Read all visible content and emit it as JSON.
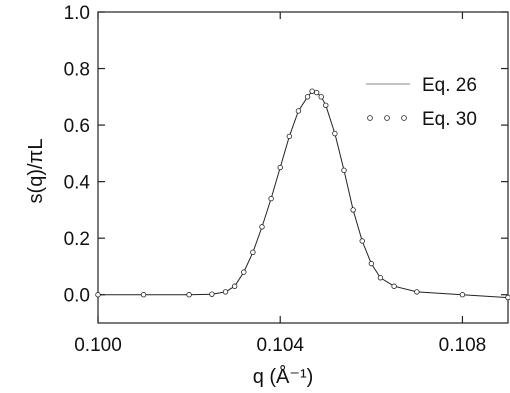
{
  "chart_data": {
    "type": "line",
    "title": "",
    "xlabel": "q (Å⁻¹)",
    "ylabel": "s(q)/πL",
    "xlim": [
      0.1,
      0.109
    ],
    "ylim": [
      -0.1,
      1.0
    ],
    "x_ticks": [
      0.1,
      0.104,
      0.108
    ],
    "x_tick_labels": [
      "0.100",
      "0.104",
      "0.108"
    ],
    "y_ticks": [
      0.0,
      0.2,
      0.4,
      0.6,
      0.8,
      1.0
    ],
    "y_tick_labels": [
      "0.0",
      "0.2",
      "0.4",
      "0.6",
      "0.8",
      "1.0"
    ],
    "grid": false,
    "legend_position": "top-right",
    "series": [
      {
        "name": "Eq. 26",
        "style": "solid-line",
        "x": [
          0.1,
          0.101,
          0.102,
          0.1025,
          0.1028,
          0.103,
          0.1032,
          0.1034,
          0.1036,
          0.1038,
          0.104,
          0.1042,
          0.1044,
          0.1046,
          0.1047,
          0.1048,
          0.1049,
          0.105,
          0.1052,
          0.1054,
          0.1056,
          0.1058,
          0.106,
          0.1062,
          0.1065,
          0.107,
          0.108,
          0.109
        ],
        "values": [
          0.0,
          0.0,
          0.0,
          0.002,
          0.01,
          0.03,
          0.08,
          0.15,
          0.24,
          0.34,
          0.45,
          0.56,
          0.65,
          0.7,
          0.72,
          0.715,
          0.7,
          0.67,
          0.57,
          0.44,
          0.3,
          0.19,
          0.11,
          0.06,
          0.03,
          0.01,
          0.0,
          -0.01
        ]
      },
      {
        "name": "Eq. 30",
        "style": "open-circles",
        "x": [
          0.1,
          0.101,
          0.102,
          0.1025,
          0.1028,
          0.103,
          0.1032,
          0.1034,
          0.1036,
          0.1038,
          0.104,
          0.1042,
          0.1044,
          0.1046,
          0.1047,
          0.1048,
          0.1049,
          0.105,
          0.1052,
          0.1054,
          0.1056,
          0.1058,
          0.106,
          0.1062,
          0.1065,
          0.107,
          0.108,
          0.109
        ],
        "values": [
          0.0,
          0.0,
          0.0,
          0.002,
          0.01,
          0.03,
          0.08,
          0.15,
          0.24,
          0.34,
          0.45,
          0.56,
          0.65,
          0.7,
          0.72,
          0.715,
          0.7,
          0.67,
          0.57,
          0.44,
          0.3,
          0.19,
          0.11,
          0.06,
          0.03,
          0.01,
          0.0,
          -0.01
        ]
      }
    ]
  }
}
